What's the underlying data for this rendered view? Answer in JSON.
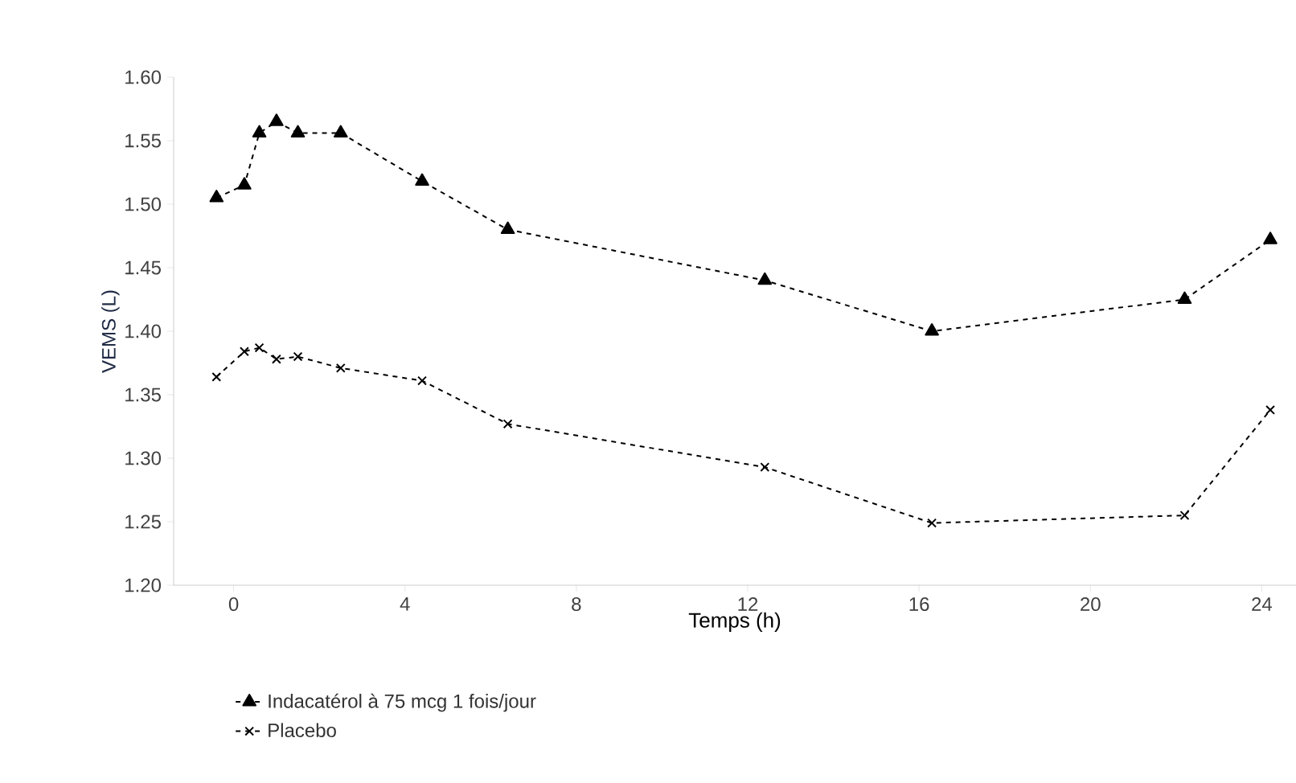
{
  "chart_data": {
    "type": "line",
    "xlabel": "Temps (h)",
    "ylabel": "VEMS (L)",
    "xlim": [
      -1.4,
      24.8
    ],
    "xticks": [
      0,
      4,
      8,
      12,
      16,
      20,
      24
    ],
    "ylim": [
      1.2,
      1.6
    ],
    "yticks": [
      {
        "value": 1.2,
        "label": "1.20"
      },
      {
        "value": 1.25,
        "label": "1.25"
      },
      {
        "value": 1.3,
        "label": "1.30"
      },
      {
        "value": 1.35,
        "label": "1.35"
      },
      {
        "value": 1.4,
        "label": "1.40"
      },
      {
        "value": 1.45,
        "label": "1.45"
      },
      {
        "value": 1.5,
        "label": "1.50"
      },
      {
        "value": 1.55,
        "label": "1.55"
      },
      {
        "value": 1.6,
        "label": "1.60"
      }
    ],
    "grid": false,
    "legend": "bottom left",
    "line_style": "dashed",
    "series": [
      {
        "name": "Indacatérol à 75 mcg 1 fois/jour",
        "color": "#000000",
        "marker": "triangle",
        "x": [
          -0.4,
          0.25,
          0.6,
          1,
          1.5,
          2.5,
          4.4,
          6.4,
          12.4,
          16.3,
          22.2,
          24.2
        ],
        "values": [
          1.505,
          1.515,
          1.556,
          1.565,
          1.556,
          1.556,
          1.518,
          1.48,
          1.44,
          1.4,
          1.425,
          1.472
        ]
      },
      {
        "name": "Placebo",
        "color": "#000000",
        "marker": "cross",
        "x": [
          -0.4,
          0.25,
          0.6,
          1,
          1.5,
          2.5,
          4.4,
          6.4,
          12.4,
          16.3,
          22.2,
          24.2
        ],
        "values": [
          1.364,
          1.384,
          1.387,
          1.378,
          1.38,
          1.371,
          1.361,
          1.327,
          1.293,
          1.249,
          1.255,
          1.338
        ]
      }
    ]
  }
}
